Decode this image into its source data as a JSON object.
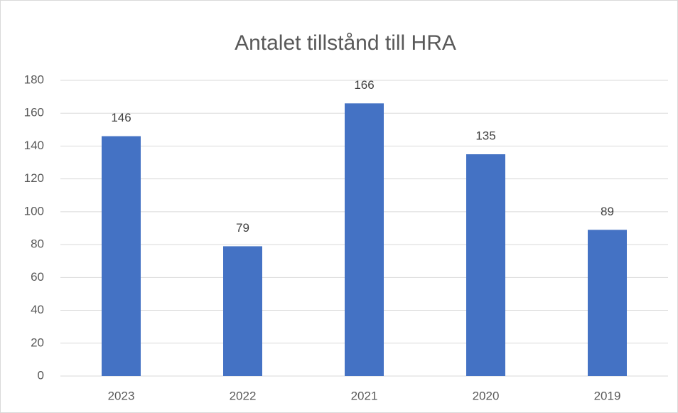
{
  "chart_data": {
    "type": "bar",
    "title": "Antalet tillstånd till HRA",
    "categories": [
      "2023",
      "2022",
      "2021",
      "2020",
      "2019"
    ],
    "values": [
      146,
      79,
      166,
      135,
      89
    ],
    "color": "#4472c4",
    "ylim": [
      0,
      180
    ],
    "yticks": [
      0,
      20,
      40,
      60,
      80,
      100,
      120,
      140,
      160,
      180
    ],
    "grid": true,
    "data_labels": true
  }
}
